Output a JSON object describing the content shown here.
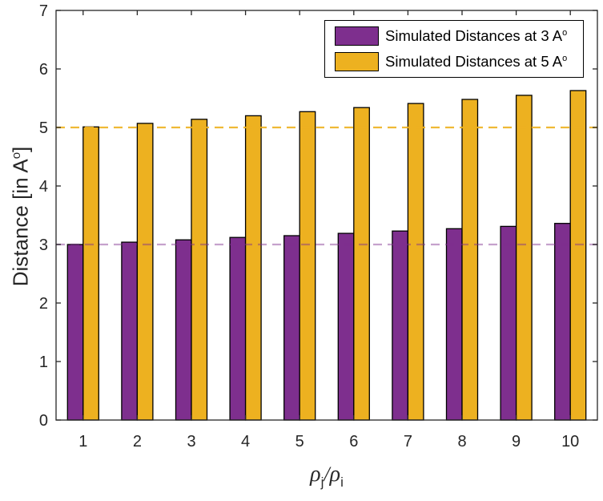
{
  "chart_data": {
    "type": "bar",
    "title": "",
    "categories": [
      1,
      2,
      3,
      4,
      5,
      6,
      7,
      8,
      9,
      10
    ],
    "series": [
      {
        "name": "Simulated Distances at 3 Aᵒ",
        "color": "#7E2F8E",
        "values": [
          3.0,
          3.04,
          3.08,
          3.12,
          3.15,
          3.19,
          3.23,
          3.27,
          3.31,
          3.36
        ]
      },
      {
        "name": "Simulated Distances at 5 Aᵒ",
        "color": "#EDB120",
        "values": [
          5.01,
          5.07,
          5.14,
          5.2,
          5.27,
          5.34,
          5.41,
          5.48,
          5.55,
          5.63
        ]
      }
    ],
    "reference_lines": [
      {
        "y": 3,
        "color": "#7E2F8E",
        "opacity": 0.45,
        "style": "dashed"
      },
      {
        "y": 5,
        "color": "#EDB120",
        "opacity": 0.9,
        "style": "dashed"
      }
    ],
    "xlabel": "ρ_j/ρ_i",
    "ylabel": "Distance [in Aᵒ]",
    "ylim": [
      0,
      7
    ],
    "yticks": [
      0,
      1,
      2,
      3,
      4,
      5,
      6,
      7
    ],
    "grid": false,
    "legend_position": "top-right",
    "bar_edge_color": "#000000",
    "axis_color": "#262626"
  },
  "ui": {
    "legend": {
      "items": [
        {
          "label": "Simulated Distances at 3 A",
          "sup": "o",
          "color": "#7E2F8E"
        },
        {
          "label": "Simulated Distances at 5 A",
          "sup": "o",
          "color": "#EDB120"
        }
      ]
    },
    "axes": {
      "ylabel_main": "Distance [in A",
      "ylabel_sup": "o",
      "ylabel_close": "]",
      "xlabel_rho1": "ρ",
      "xlabel_sub_j": "j",
      "xlabel_slash": "/",
      "xlabel_rho2": "ρ",
      "xlabel_sub_i": "i"
    }
  }
}
